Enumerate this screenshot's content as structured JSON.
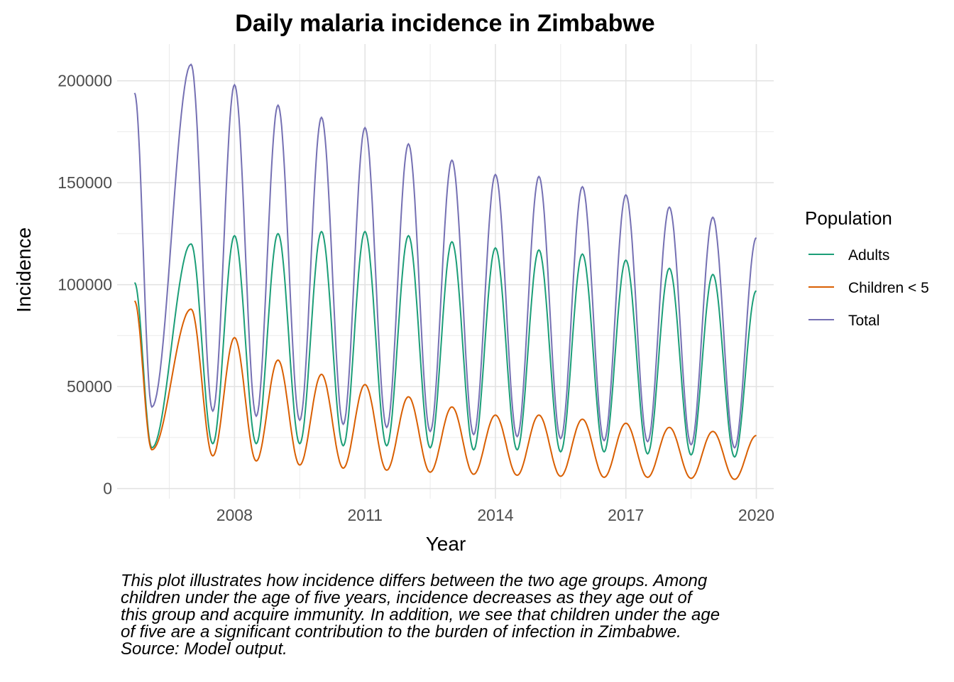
{
  "chart_data": {
    "type": "line",
    "title": "Daily malaria incidence in Zimbabwe",
    "xlabel": "Year",
    "ylabel": "Incidence",
    "xlim": [
      2005.3,
      2020.4
    ],
    "ylim": [
      -5000,
      218000
    ],
    "x_ticks": [
      2008,
      2011,
      2014,
      2017,
      2020
    ],
    "y_ticks": [
      0,
      50000,
      100000,
      150000,
      200000
    ],
    "grid": true,
    "legend": {
      "title": "Population",
      "position": "right"
    },
    "x_start": 2005.7,
    "x_end": 2020.0,
    "series": [
      {
        "name": "Adults",
        "color": "#1b9e77",
        "start_value": 101000,
        "end_value": 97000,
        "peaks": [
          [
            2007.0,
            120000
          ],
          [
            2008.0,
            124000
          ],
          [
            2009.0,
            125000
          ],
          [
            2010.0,
            126000
          ],
          [
            2011.0,
            126000
          ],
          [
            2012.0,
            124000
          ],
          [
            2013.0,
            121000
          ],
          [
            2014.0,
            118000
          ],
          [
            2015.0,
            117000
          ],
          [
            2016.0,
            115000
          ],
          [
            2017.0,
            112000
          ],
          [
            2018.0,
            108000
          ],
          [
            2019.0,
            105000
          ]
        ],
        "troughs": [
          [
            2006.1,
            20000
          ],
          [
            2007.5,
            22000
          ],
          [
            2008.5,
            22000
          ],
          [
            2009.5,
            22000
          ],
          [
            2010.5,
            21000
          ],
          [
            2011.5,
            21000
          ],
          [
            2012.5,
            20000
          ],
          [
            2013.5,
            19000
          ],
          [
            2014.5,
            19000
          ],
          [
            2015.5,
            18000
          ],
          [
            2016.5,
            18000
          ],
          [
            2017.5,
            17000
          ],
          [
            2018.5,
            16500
          ],
          [
            2019.5,
            15500
          ]
        ]
      },
      {
        "name": "Children < 5",
        "color": "#d95f02",
        "start_value": 92000,
        "end_value": 26000,
        "peaks": [
          [
            2007.0,
            88000
          ],
          [
            2008.0,
            74000
          ],
          [
            2009.0,
            63000
          ],
          [
            2010.0,
            56000
          ],
          [
            2011.0,
            51000
          ],
          [
            2012.0,
            45000
          ],
          [
            2013.0,
            40000
          ],
          [
            2014.0,
            36000
          ],
          [
            2015.0,
            36000
          ],
          [
            2016.0,
            34000
          ],
          [
            2017.0,
            32000
          ],
          [
            2018.0,
            30000
          ],
          [
            2019.0,
            28000
          ]
        ],
        "troughs": [
          [
            2006.1,
            19000
          ],
          [
            2007.5,
            16000
          ],
          [
            2008.5,
            13500
          ],
          [
            2009.5,
            11500
          ],
          [
            2010.5,
            10000
          ],
          [
            2011.5,
            9000
          ],
          [
            2012.5,
            8000
          ],
          [
            2013.5,
            7000
          ],
          [
            2014.5,
            6500
          ],
          [
            2015.5,
            6000
          ],
          [
            2016.5,
            5500
          ],
          [
            2017.5,
            5500
          ],
          [
            2018.5,
            5000
          ],
          [
            2019.5,
            4500
          ]
        ]
      },
      {
        "name": "Total",
        "color": "#7570b3",
        "start_value": 194000,
        "end_value": 123000,
        "peaks": [
          [
            2007.0,
            208000
          ],
          [
            2008.0,
            198000
          ],
          [
            2009.0,
            188000
          ],
          [
            2010.0,
            182000
          ],
          [
            2011.0,
            177000
          ],
          [
            2012.0,
            169000
          ],
          [
            2013.0,
            161000
          ],
          [
            2014.0,
            154000
          ],
          [
            2015.0,
            153000
          ],
          [
            2016.0,
            148000
          ],
          [
            2017.0,
            144000
          ],
          [
            2018.0,
            138000
          ],
          [
            2019.0,
            133000
          ]
        ],
        "troughs": [
          [
            2006.1,
            40000
          ],
          [
            2007.5,
            38000
          ],
          [
            2008.5,
            35500
          ],
          [
            2009.5,
            33500
          ],
          [
            2010.5,
            31500
          ],
          [
            2011.5,
            30000
          ],
          [
            2012.5,
            28000
          ],
          [
            2013.5,
            26500
          ],
          [
            2014.5,
            25500
          ],
          [
            2015.5,
            24500
          ],
          [
            2016.5,
            23500
          ],
          [
            2017.5,
            23000
          ],
          [
            2018.5,
            21500
          ],
          [
            2019.5,
            20000
          ]
        ]
      }
    ]
  },
  "caption": {
    "lines": [
      "This plot illustrates how incidence differs between the two age groups. Among",
      "children under the age of five years, incidence decreases as they age out of",
      "this group and acquire immunity. In addition, we see that children under the age",
      "of five are a significant contribution to the burden of infection in Zimbabwe.",
      "Source: Model output."
    ]
  }
}
